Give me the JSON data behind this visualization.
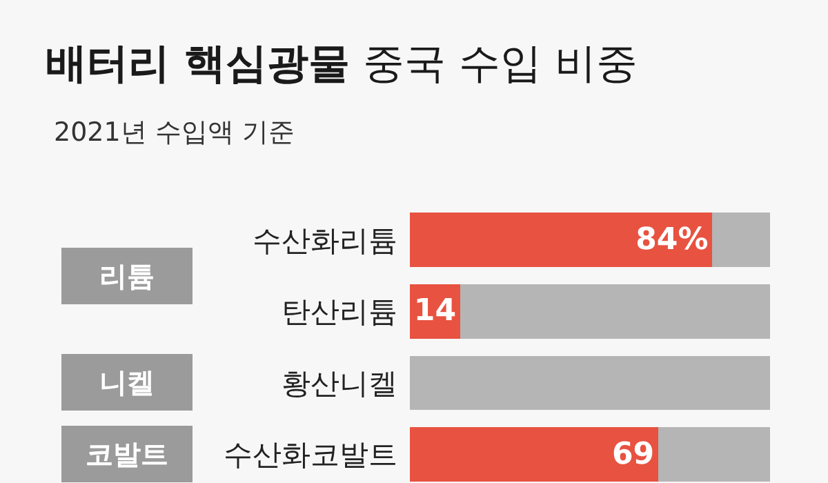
{
  "chart_data": {
    "type": "bar",
    "orientation": "horizontal",
    "stacked": true,
    "title": "배터리 핵심광물 중국 수입 비중",
    "subtitle": "2021년 수입액 기준",
    "categories": [
      "수산화리튬",
      "탄산리튬",
      "황산니켈",
      "수산화코발트"
    ],
    "series": [
      {
        "color": "#e85240",
        "values": [
          84,
          14,
          0,
          69
        ],
        "value_labels": [
          "84%",
          "14",
          null,
          "69"
        ]
      },
      {
        "color": "#b5b5b5",
        "values": [
          16,
          86,
          100,
          31
        ]
      }
    ],
    "annotations": [
      "리튬",
      "니켈",
      "코발트"
    ],
    "xlim": [
      0,
      100
    ],
    "tick_labels": false
  }
}
